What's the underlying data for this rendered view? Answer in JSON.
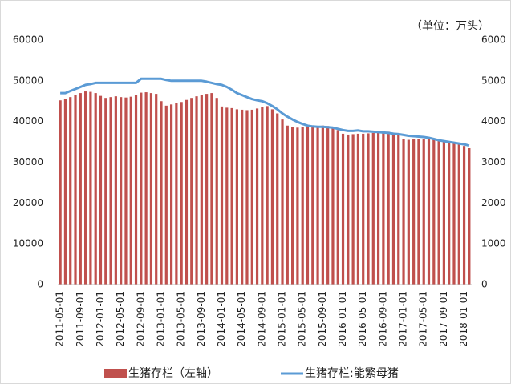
{
  "chart_data": {
    "type": "bar_line",
    "unit_label": "（单位：万头）",
    "categories": [
      "2011-05-01",
      null,
      null,
      null,
      "2011-09-01",
      null,
      null,
      null,
      "2012-01-01",
      null,
      null,
      null,
      "2012-05-01",
      null,
      null,
      null,
      "2012-09-01",
      null,
      null,
      null,
      "2013-01-01",
      null,
      null,
      null,
      "2013-05-01",
      null,
      null,
      null,
      "2013-09-01",
      null,
      null,
      null,
      "2014-01-01",
      null,
      null,
      null,
      "2014-05-01",
      null,
      null,
      null,
      "2014-09-01",
      null,
      null,
      null,
      "2015-01-01",
      null,
      null,
      null,
      "2015-05-01",
      null,
      null,
      null,
      "2015-09-01",
      null,
      null,
      null,
      "2016-01-01",
      null,
      null,
      null,
      "2016-05-01",
      null,
      null,
      null,
      "2016-09-01",
      null,
      null,
      null,
      "2017-01-01",
      null,
      null,
      null,
      "2017-05-01",
      null,
      null,
      null,
      "2017-09-01",
      null,
      null,
      null,
      "2018-01-01",
      null
    ],
    "series": [
      {
        "name": "生猪存栏（左轴）",
        "type": "bar",
        "color": "#c0504d",
        "values": [
          45200,
          45600,
          46000,
          46500,
          47000,
          47400,
          47300,
          47000,
          46300,
          45800,
          46000,
          46200,
          46000,
          45900,
          46100,
          46500,
          47100,
          47200,
          47000,
          46800,
          45000,
          43900,
          44200,
          44500,
          44800,
          45300,
          45800,
          46200,
          46600,
          46800,
          47000,
          45800,
          43700,
          43400,
          43300,
          43000,
          42900,
          42800,
          42900,
          43200,
          43600,
          43800,
          43000,
          42000,
          40500,
          39000,
          38600,
          38500,
          38600,
          38800,
          38900,
          38900,
          39000,
          38900,
          38500,
          37900,
          37000,
          36800,
          36900,
          37000,
          37000,
          37100,
          37200,
          37300,
          37400,
          37500,
          37200,
          36800,
          35800,
          35500,
          35600,
          35700,
          35800,
          35700,
          35600,
          35400,
          35300,
          35000,
          34700,
          34400,
          34000,
          33500
        ]
      },
      {
        "name": "生猪存栏:能繁母猪",
        "type": "line",
        "axis": "y2",
        "color": "#5b9bd5",
        "values": [
          4700,
          4700,
          4750,
          4800,
          4850,
          4900,
          4920,
          4950,
          4950,
          4950,
          4950,
          4950,
          4950,
          4950,
          4950,
          4950,
          5050,
          5050,
          5050,
          5050,
          5050,
          5020,
          5000,
          5000,
          5000,
          5000,
          5000,
          5000,
          5000,
          4980,
          4950,
          4920,
          4900,
          4850,
          4780,
          4700,
          4650,
          4600,
          4550,
          4520,
          4500,
          4450,
          4380,
          4300,
          4200,
          4120,
          4050,
          3990,
          3940,
          3900,
          3880,
          3870,
          3870,
          3860,
          3850,
          3820,
          3790,
          3770,
          3770,
          3780,
          3760,
          3760,
          3750,
          3740,
          3730,
          3720,
          3700,
          3690,
          3670,
          3650,
          3640,
          3630,
          3620,
          3600,
          3570,
          3540,
          3520,
          3500,
          3480,
          3460,
          3440,
          3410
        ]
      }
    ],
    "ylim": [
      0,
      60000
    ],
    "yticks": [
      0,
      10000,
      20000,
      30000,
      40000,
      50000,
      60000
    ],
    "y2lim": [
      0,
      6000
    ],
    "y2ticks": [
      0,
      1000,
      2000,
      3000,
      4000,
      5000,
      6000
    ],
    "legend": "bottom"
  }
}
